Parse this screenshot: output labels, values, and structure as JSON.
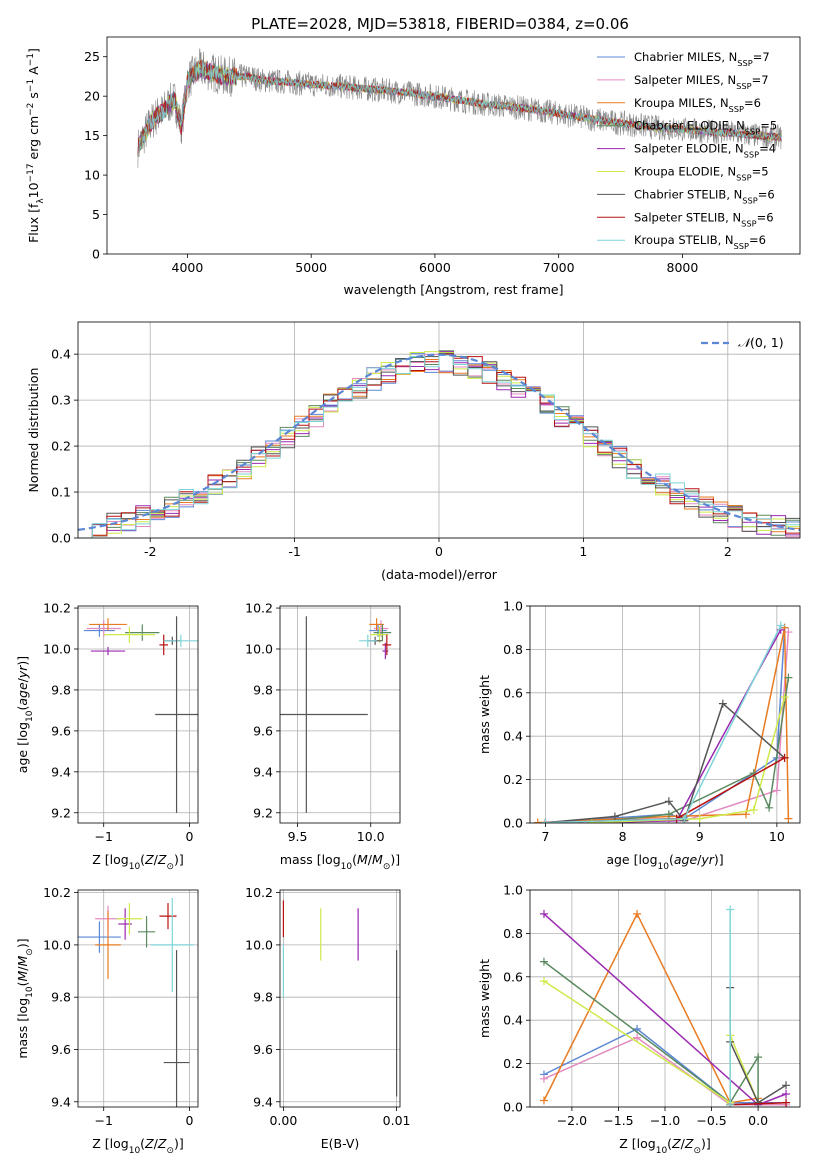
{
  "page": {
    "title": "PLATE=2028, MJD=53818, FIBERID=0384, z=0.06"
  },
  "colors": {
    "Chabrier MILES": "#5b87d5",
    "Salpeter MILES": "#e48ac0",
    "Kroupa MILES": "#e87b22",
    "Chabrier ELODIE": "#5b8a5f",
    "Salpeter ELODIE": "#9a2ab0",
    "Kroupa ELODIE": "#cdea4a",
    "Chabrier STELIB": "#555555",
    "Salpeter STELIB": "#b81010",
    "Kroupa STELIB": "#7fd4d8"
  },
  "chart_data": [
    {
      "id": "spectrum",
      "type": "line",
      "title": "PLATE=2028, MJD=53818, FIBERID=0384, z=0.06",
      "xlabel": "wavelength [Angstrom, rest frame]",
      "ylabel": "Flux [f_λ 10^-17 erg cm^-2 s^-1 A^-1]",
      "xlim": [
        3350,
        8950
      ],
      "ylim": [
        0,
        27.5
      ],
      "xticks": [
        4000,
        5000,
        6000,
        7000,
        8000
      ],
      "yticks": [
        0,
        5,
        10,
        15,
        20,
        25
      ],
      "grid": false,
      "legend_placement": "upper right",
      "data_color": "#888888",
      "x": [
        3600,
        3650,
        3700,
        3750,
        3800,
        3850,
        3900,
        3950,
        4000,
        4100,
        4200,
        4300,
        4400,
        4500,
        4600,
        4800,
        5000,
        5200,
        5400,
        5600,
        5800,
        6000,
        6200,
        6400,
        6600,
        6800,
        7000,
        7200,
        7400,
        7600,
        7800,
        8000,
        8200,
        8400,
        8600,
        8800
      ],
      "y": [
        13.5,
        15,
        16.5,
        17.5,
        18,
        19,
        19.5,
        16,
        22,
        23.5,
        23,
        22.5,
        22.5,
        22.5,
        22,
        21.8,
        21.5,
        21.3,
        21,
        20.7,
        20.4,
        20,
        19.5,
        19,
        18.7,
        18.3,
        17.8,
        17.3,
        16.8,
        16.4,
        16,
        15.8,
        15.5,
        15.3,
        15,
        14.8
      ],
      "series": [
        {
          "name": "Chabrier MILES, N_SSP=7",
          "label_prefix": "Chabrier MILES, N",
          "label_sub": "SSP",
          "label_suffix": "=7"
        },
        {
          "name": "Salpeter MILES, N_SSP=7",
          "label_prefix": "Salpeter MILES, N",
          "label_sub": "SSP",
          "label_suffix": "=7"
        },
        {
          "name": "Kroupa MILES, N_SSP=6",
          "label_prefix": "Kroupa MILES, N",
          "label_sub": "SSP",
          "label_suffix": "=6"
        },
        {
          "name": "Chabrier ELODIE, N_SSP=5",
          "label_prefix": "Chabrier ELODIE, N",
          "label_sub": "SSP",
          "label_suffix": "=5"
        },
        {
          "name": "Salpeter ELODIE, N_SSP=4",
          "label_prefix": "Salpeter ELODIE, N",
          "label_sub": "SSP",
          "label_suffix": "=4"
        },
        {
          "name": "Kroupa ELODIE, N_SSP=5",
          "label_prefix": "Kroupa ELODIE, N",
          "label_sub": "SSP",
          "label_suffix": "=5"
        },
        {
          "name": "Chabrier STELIB, N_SSP=6",
          "label_prefix": "Chabrier STELIB, N",
          "label_sub": "SSP",
          "label_suffix": "=6"
        },
        {
          "name": "Salpeter STELIB, N_SSP=6",
          "label_prefix": "Salpeter STELIB, N",
          "label_sub": "SSP",
          "label_suffix": "=6"
        },
        {
          "name": "Kroupa STELIB, N_SSP=6",
          "label_prefix": "Kroupa STELIB, N",
          "label_sub": "SSP",
          "label_suffix": "=6"
        }
      ]
    },
    {
      "id": "residuals",
      "type": "line",
      "xlabel": "(data-model)/error",
      "ylabel": "Normed distribution",
      "xlim": [
        -2.5,
        2.5
      ],
      "ylim": [
        0,
        0.47
      ],
      "xticks": [
        -2,
        -1,
        0,
        1,
        2
      ],
      "yticks": [
        0.0,
        0.1,
        0.2,
        0.3,
        0.4
      ],
      "ytick_labels": [
        "0.0",
        "0.1",
        "0.2",
        "0.3",
        "0.4"
      ],
      "grid": true,
      "legend_placement": "upper right",
      "reference": {
        "label": "N(0,1)",
        "color": "#5b87d5",
        "dash": true
      },
      "bin_width": 0.1
    },
    {
      "id": "age-vs-z",
      "type": "scatter",
      "xlabel": "Z [log10(Z/Z⊙)]",
      "ylabel": "age [log10(age/yr)]",
      "xlim": [
        -1.3,
        0.1
      ],
      "ylim": [
        9.15,
        10.21
      ],
      "xticks": [
        -1,
        0
      ],
      "xtick_labels": [
        "−1",
        "0"
      ],
      "yticks": [
        9.2,
        9.4,
        9.6,
        9.8,
        10.0,
        10.2
      ],
      "ytick_labels": [
        "9.2",
        "9.4",
        "9.6",
        "9.8",
        "10.0",
        "10.2"
      ],
      "grid": true,
      "points": [
        {
          "series": "Chabrier MILES",
          "x": -1.05,
          "y": 10.09,
          "xerr": 0.18,
          "yerr": 0.03
        },
        {
          "series": "Salpeter MILES",
          "x": -1.0,
          "y": 10.1,
          "xerr": 0.2,
          "yerr": 0.04
        },
        {
          "series": "Kroupa MILES",
          "x": -0.95,
          "y": 10.12,
          "xerr": 0.22,
          "yerr": 0.03
        },
        {
          "series": "Chabrier ELODIE",
          "x": -0.55,
          "y": 10.08,
          "xerr": 0.2,
          "yerr": 0.04
        },
        {
          "series": "Salpeter ELODIE",
          "x": -0.95,
          "y": 9.99,
          "xerr": 0.2,
          "yerr": 0.02
        },
        {
          "series": "Kroupa ELODIE",
          "x": -0.7,
          "y": 10.07,
          "xerr": 0.3,
          "yerr": 0.04
        },
        {
          "series": "Chabrier STELIB",
          "x": -0.2,
          "y": 10.04,
          "xerr": 0.1,
          "yerr": 0.02
        },
        {
          "series": "Salpeter STELIB",
          "x": -0.3,
          "y": 10.02,
          "xerr": 0.05,
          "yerr": 0.05
        },
        {
          "series": "Kroupa STELIB",
          "x": -0.1,
          "y": 10.04,
          "xerr": 0.2,
          "yerr": 0.03
        },
        {
          "series": "Chabrier STELIB",
          "x": -0.15,
          "y": 9.68,
          "xerr": 0.25,
          "yerr": 0.48
        }
      ]
    },
    {
      "id": "age-vs-mass",
      "type": "scatter",
      "xlabel": "mass [log10(M/M⊙)]",
      "xlim": [
        9.38,
        10.2
      ],
      "ylim": [
        9.15,
        10.21
      ],
      "xticks": [
        9.5,
        10.0
      ],
      "xtick_labels": [
        "9.5",
        "10.0"
      ],
      "yticks": [
        9.2,
        9.4,
        9.6,
        9.8,
        10.0,
        10.2
      ],
      "ytick_labels": [
        "9.2",
        "9.4",
        "9.6",
        "9.8",
        "10.0",
        "10.2"
      ],
      "grid": true,
      "points": [
        {
          "series": "Chabrier MILES",
          "x": 10.05,
          "y": 10.09,
          "xerr": 0.06,
          "yerr": 0.03
        },
        {
          "series": "Salpeter MILES",
          "x": 10.07,
          "y": 10.1,
          "xerr": 0.05,
          "yerr": 0.04
        },
        {
          "series": "Kroupa MILES",
          "x": 10.04,
          "y": 10.12,
          "xerr": 0.05,
          "yerr": 0.03
        },
        {
          "series": "Chabrier ELODIE",
          "x": 10.08,
          "y": 10.08,
          "xerr": 0.06,
          "yerr": 0.04
        },
        {
          "series": "Salpeter ELODIE",
          "x": 10.1,
          "y": 9.99,
          "xerr": 0.02,
          "yerr": 0.04
        },
        {
          "series": "Kroupa ELODIE",
          "x": 10.06,
          "y": 10.07,
          "xerr": 0.06,
          "yerr": 0.04
        },
        {
          "series": "Chabrier STELIB",
          "x": 10.03,
          "y": 10.04,
          "xerr": 0.05,
          "yerr": 0.02
        },
        {
          "series": "Salpeter STELIB",
          "x": 10.11,
          "y": 10.02,
          "xerr": 0.03,
          "yerr": 0.05
        },
        {
          "series": "Kroupa STELIB",
          "x": 9.98,
          "y": 10.04,
          "xerr": 0.06,
          "yerr": 0.03
        },
        {
          "series": "Chabrier STELIB",
          "x": 9.56,
          "y": 9.68,
          "xerr": 0.42,
          "yerr": 0.48
        }
      ]
    },
    {
      "id": "weight-vs-age",
      "type": "line",
      "xlabel": "age [log10(age/yr)]",
      "ylabel": "mass weight",
      "xlim": [
        6.8,
        10.3
      ],
      "ylim": [
        0,
        1.0
      ],
      "xticks": [
        7,
        8,
        9,
        10
      ],
      "yticks": [
        0.0,
        0.2,
        0.4,
        0.6,
        0.8,
        1.0
      ],
      "ytick_labels": [
        "0.0",
        "0.2",
        "0.4",
        "0.6",
        "0.8",
        "1.0"
      ],
      "grid": true,
      "series": [
        {
          "name": "Chabrier MILES",
          "x": [
            7.0,
            8.6,
            8.8,
            10.0,
            10.1
          ],
          "y": [
            0.002,
            0.04,
            0.02,
            0.3,
            0.9
          ]
        },
        {
          "name": "Salpeter MILES",
          "x": [
            7.0,
            8.6,
            8.8,
            10.0,
            10.15
          ],
          "y": [
            0.002,
            0.02,
            0.01,
            0.15,
            0.88
          ]
        },
        {
          "name": "Kroupa MILES",
          "x": [
            6.9,
            8.6,
            9.6,
            10.1,
            10.15
          ],
          "y": [
            0.002,
            0.03,
            0.04,
            0.9,
            0.02
          ]
        },
        {
          "name": "Chabrier ELODIE",
          "x": [
            7.6,
            8.6,
            9.7,
            9.9,
            10.15
          ],
          "y": [
            0.002,
            0.04,
            0.23,
            0.07,
            0.67
          ]
        },
        {
          "name": "Salpeter ELODIE",
          "x": [
            7.6,
            8.7,
            10.05
          ],
          "y": [
            0.002,
            0.01,
            0.89
          ]
        },
        {
          "name": "Kroupa ELODIE",
          "x": [
            7.6,
            9.0,
            9.7,
            10.1
          ],
          "y": [
            0.002,
            0.02,
            0.06,
            0.58
          ]
        },
        {
          "name": "Chabrier STELIB",
          "x": [
            7.0,
            7.9,
            8.6,
            8.8,
            9.3,
            10.1
          ],
          "y": [
            0.002,
            0.03,
            0.1,
            0.01,
            0.55,
            0.3
          ]
        },
        {
          "name": "Salpeter STELIB",
          "x": [
            7.0,
            8.7,
            10.1
          ],
          "y": [
            0.002,
            0.02,
            0.3
          ]
        },
        {
          "name": "Kroupa STELIB",
          "x": [
            7.0,
            8.8,
            10.05
          ],
          "y": [
            0.002,
            0.02,
            0.91
          ]
        }
      ]
    },
    {
      "id": "mass-vs-z",
      "type": "scatter",
      "xlabel": "Z [log10(Z/Z⊙)]",
      "ylabel": "mass [log10(M/M⊙)]",
      "xlim": [
        -1.3,
        0.1
      ],
      "ylim": [
        9.38,
        10.21
      ],
      "xticks": [
        -1,
        0
      ],
      "xtick_labels": [
        "−1",
        "0"
      ],
      "yticks": [
        9.4,
        9.6,
        9.8,
        10.0,
        10.2
      ],
      "ytick_labels": [
        "9.4",
        "9.6",
        "9.8",
        "10.0",
        "10.2"
      ],
      "grid": true,
      "points": [
        {
          "series": "Chabrier MILES",
          "x": -1.05,
          "y": 10.03,
          "xerr": 0.25,
          "yerr": 0.06
        },
        {
          "series": "Salpeter MILES",
          "x": -0.95,
          "y": 10.1,
          "xerr": 0.15,
          "yerr": 0.05
        },
        {
          "series": "Kroupa MILES",
          "x": -0.95,
          "y": 10.0,
          "xerr": 0.15,
          "yerr": 0.13
        },
        {
          "series": "Chabrier ELODIE",
          "x": -0.5,
          "y": 10.05,
          "xerr": 0.1,
          "yerr": 0.06
        },
        {
          "series": "Salpeter ELODIE",
          "x": -0.75,
          "y": 10.08,
          "xerr": 0.08,
          "yerr": 0.06
        },
        {
          "series": "Kroupa ELODIE",
          "x": -0.7,
          "y": 10.1,
          "xerr": 0.15,
          "yerr": 0.06
        },
        {
          "series": "Chabrier STELIB",
          "x": -0.15,
          "y": 9.55,
          "xerr": 0.15,
          "yerr": 0.43
        },
        {
          "series": "Salpeter STELIB",
          "x": -0.25,
          "y": 10.11,
          "xerr": 0.1,
          "yerr": 0.05
        },
        {
          "series": "Kroupa STELIB",
          "x": -0.2,
          "y": 10.0,
          "xerr": 0.25,
          "yerr": 0.18
        }
      ]
    },
    {
      "id": "mass-vs-ebv",
      "type": "scatter",
      "xlabel": "E(B-V)",
      "xlim": [
        -0.0003,
        0.0103
      ],
      "ylim": [
        9.38,
        10.21
      ],
      "xticks": [
        0.0,
        0.01
      ],
      "xtick_labels": [
        "0.00",
        "0.01"
      ],
      "yticks": [
        9.4,
        9.6,
        9.8,
        10.0,
        10.2
      ],
      "ytick_labels": [
        "9.4",
        "9.6",
        "9.8",
        "10.0",
        "10.2"
      ],
      "grid": true,
      "points": [
        {
          "series": "Salpeter STELIB",
          "x": 0.0,
          "y": 10.1,
          "xerr": 0,
          "yerr": 0.07
        },
        {
          "series": "Kroupa STELIB",
          "x": 0.0,
          "y": 9.9,
          "xerr": 0,
          "yerr": 0.1
        },
        {
          "series": "Kroupa ELODIE",
          "x": 0.0033,
          "y": 10.04,
          "xerr": 0,
          "yerr": 0.1
        },
        {
          "series": "Salpeter ELODIE",
          "x": 0.0066,
          "y": 10.04,
          "xerr": 0,
          "yerr": 0.1
        },
        {
          "series": "Chabrier STELIB",
          "x": 0.01,
          "y": 9.7,
          "xerr": 0,
          "yerr": 0.28
        }
      ]
    },
    {
      "id": "weight-vs-z",
      "type": "line",
      "xlabel": "Z [log10(Z/Z⊙)]",
      "ylabel": "mass weight",
      "xlim": [
        -2.45,
        0.45
      ],
      "ylim": [
        0,
        1.0
      ],
      "xticks": [
        -2.0,
        -1.5,
        -1.0,
        -0.5,
        0.0
      ],
      "xtick_labels": [
        "−2.0",
        "−1.5",
        "−1.0",
        "−0.5",
        "0.0"
      ],
      "yticks": [
        0.0,
        0.2,
        0.4,
        0.6,
        0.8,
        1.0
      ],
      "ytick_labels": [
        "0.0",
        "0.2",
        "0.4",
        "0.6",
        "0.8",
        "1.0"
      ],
      "grid": true,
      "series": [
        {
          "name": "Chabrier MILES",
          "x": [
            -2.3,
            -1.3,
            -0.3,
            0.3
          ],
          "y": [
            0.15,
            0.36,
            0.02,
            0.02
          ]
        },
        {
          "name": "Salpeter MILES",
          "x": [
            -2.3,
            -1.3,
            -0.3,
            0.3
          ],
          "y": [
            0.13,
            0.32,
            0.01,
            0.01
          ]
        },
        {
          "name": "Kroupa MILES",
          "x": [
            -2.3,
            -1.3,
            -0.3,
            0.0
          ],
          "y": [
            0.03,
            0.89,
            0.02,
            0.04
          ]
        },
        {
          "name": "Chabrier ELODIE",
          "x": [
            -2.3,
            -0.3,
            0.0,
            0.0
          ],
          "y": [
            0.67,
            0.02,
            0.23,
            0.01
          ]
        },
        {
          "name": "Salpeter ELODIE",
          "x": [
            -2.3,
            0.0,
            0.3
          ],
          "y": [
            0.89,
            0.01,
            0.06
          ]
        },
        {
          "name": "Kroupa ELODIE",
          "x": [
            -2.3,
            -0.3,
            -0.3,
            0.0
          ],
          "y": [
            0.58,
            0.02,
            0.33,
            0.02
          ]
        },
        {
          "name": "Chabrier STELIB",
          "x": [
            -0.3,
            -0.3,
            0.0,
            0.3
          ],
          "y": [
            0.55,
            0.3,
            0.02,
            0.1
          ]
        },
        {
          "name": "Salpeter STELIB",
          "x": [
            -0.3,
            0.3
          ],
          "y": [
            0.01,
            0.02
          ]
        },
        {
          "name": "Kroupa STELIB",
          "x": [
            -0.3,
            -0.3
          ],
          "y": [
            0.91,
            0.01
          ]
        }
      ]
    }
  ]
}
